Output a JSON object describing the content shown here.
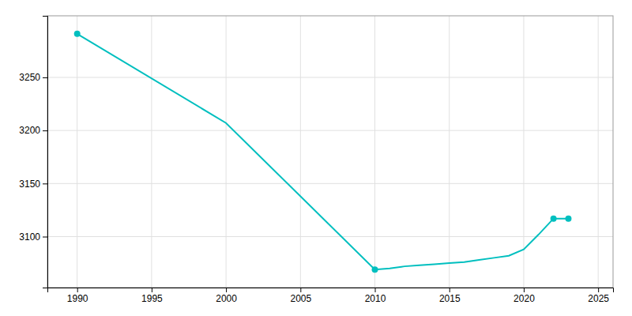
{
  "chart_data": {
    "type": "line",
    "x": [
      1990,
      2000,
      2010,
      2011,
      2012,
      2013,
      2014,
      2015,
      2016,
      2017,
      2018,
      2019,
      2020,
      2021,
      2022,
      2023
    ],
    "series": [
      {
        "type": "line",
        "color": "#00BFBF",
        "values": [
          3291,
          3207,
          3069,
          3070,
          3072,
          3073,
          3074,
          3075,
          3076,
          3078,
          3080,
          3082,
          3088,
          3102,
          3117,
          3117
        ]
      },
      {
        "type": "scatter",
        "marker": "circle",
        "color": "#00BFBF",
        "values": [
          3291,
          null,
          3069,
          null,
          null,
          null,
          null,
          null,
          null,
          null,
          null,
          null,
          null,
          null,
          3117,
          3117
        ]
      }
    ],
    "xlim": [
      1988,
      2026
    ],
    "ylim": [
      3052,
      3308
    ],
    "xticks": [
      1990,
      1995,
      2000,
      2005,
      2010,
      2015,
      2020,
      2025
    ],
    "yticks": [
      3100,
      3150,
      3200,
      3250
    ],
    "grid": true
  }
}
